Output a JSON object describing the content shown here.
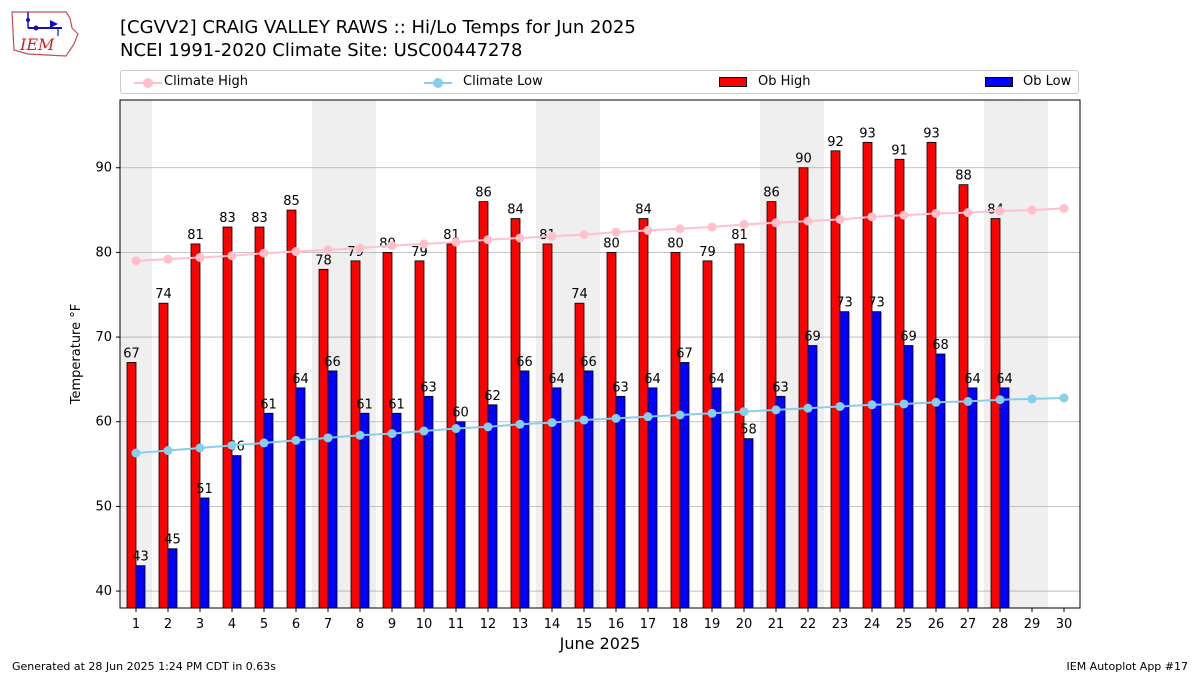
{
  "header": {
    "title_line1": "[CGVV2] CRAIG VALLEY RAWS :: Hi/Lo Temps for Jun 2025",
    "title_line2": "NCEI 1991-2020 Climate Site: USC00447278",
    "logo_text": "IEM"
  },
  "legend": {
    "climate_high": "Climate High",
    "climate_low": "Climate Low",
    "ob_high": "Ob High",
    "ob_low": "Ob Low"
  },
  "footer": {
    "generated": "Generated at 28 Jun 2025 1:24 PM CDT in 0.63s",
    "app": "IEM Autoplot App #17"
  },
  "colors": {
    "ob_high": "#ff0000",
    "ob_low": "#0000ff",
    "climate_high": "#ffc0cb",
    "climate_low": "#87ceeb",
    "week_shade": "#efefef",
    "grid": "#b0b0b0"
  },
  "chart_data": {
    "type": "bar",
    "xlabel": "June 2025",
    "ylabel": "Temperature °F",
    "ylim": [
      38,
      98
    ],
    "yticks": [
      40,
      50,
      60,
      70,
      80,
      90
    ],
    "grid": "horizontal",
    "legend_position": "top",
    "categories": [
      1,
      2,
      3,
      4,
      5,
      6,
      7,
      8,
      9,
      10,
      11,
      12,
      13,
      14,
      15,
      16,
      17,
      18,
      19,
      20,
      21,
      22,
      23,
      24,
      25,
      26,
      27,
      28,
      29,
      30
    ],
    "shaded_weekend_days": [
      1,
      7,
      8,
      14,
      15,
      21,
      22,
      28,
      29
    ],
    "series": [
      {
        "name": "Ob High",
        "kind": "bar",
        "values": [
          67,
          74,
          81,
          83,
          83,
          85,
          78,
          79,
          80,
          79,
          81,
          86,
          84,
          81,
          74,
          80,
          84,
          80,
          79,
          81,
          86,
          90,
          92,
          93,
          91,
          93,
          88,
          84,
          null,
          null
        ]
      },
      {
        "name": "Ob Low",
        "kind": "bar",
        "values": [
          43,
          45,
          51,
          56,
          61,
          64,
          66,
          61,
          61,
          63,
          60,
          62,
          66,
          64,
          66,
          63,
          64,
          67,
          64,
          58,
          63,
          69,
          73,
          73,
          69,
          68,
          64,
          64,
          null,
          null
        ]
      },
      {
        "name": "Climate High",
        "kind": "line",
        "values": [
          79.0,
          79.2,
          79.4,
          79.6,
          79.9,
          80.1,
          80.3,
          80.5,
          80.8,
          81.0,
          81.2,
          81.5,
          81.7,
          81.9,
          82.1,
          82.4,
          82.6,
          82.8,
          83.0,
          83.3,
          83.5,
          83.7,
          83.9,
          84.2,
          84.4,
          84.6,
          84.7,
          84.9,
          85.0,
          85.2
        ]
      },
      {
        "name": "Climate Low",
        "kind": "line",
        "values": [
          56.3,
          56.6,
          56.9,
          57.2,
          57.5,
          57.8,
          58.1,
          58.4,
          58.6,
          58.9,
          59.2,
          59.4,
          59.7,
          59.9,
          60.2,
          60.4,
          60.6,
          60.8,
          61.0,
          61.2,
          61.4,
          61.6,
          61.8,
          62.0,
          62.1,
          62.3,
          62.4,
          62.6,
          62.7,
          62.8
        ]
      }
    ]
  }
}
